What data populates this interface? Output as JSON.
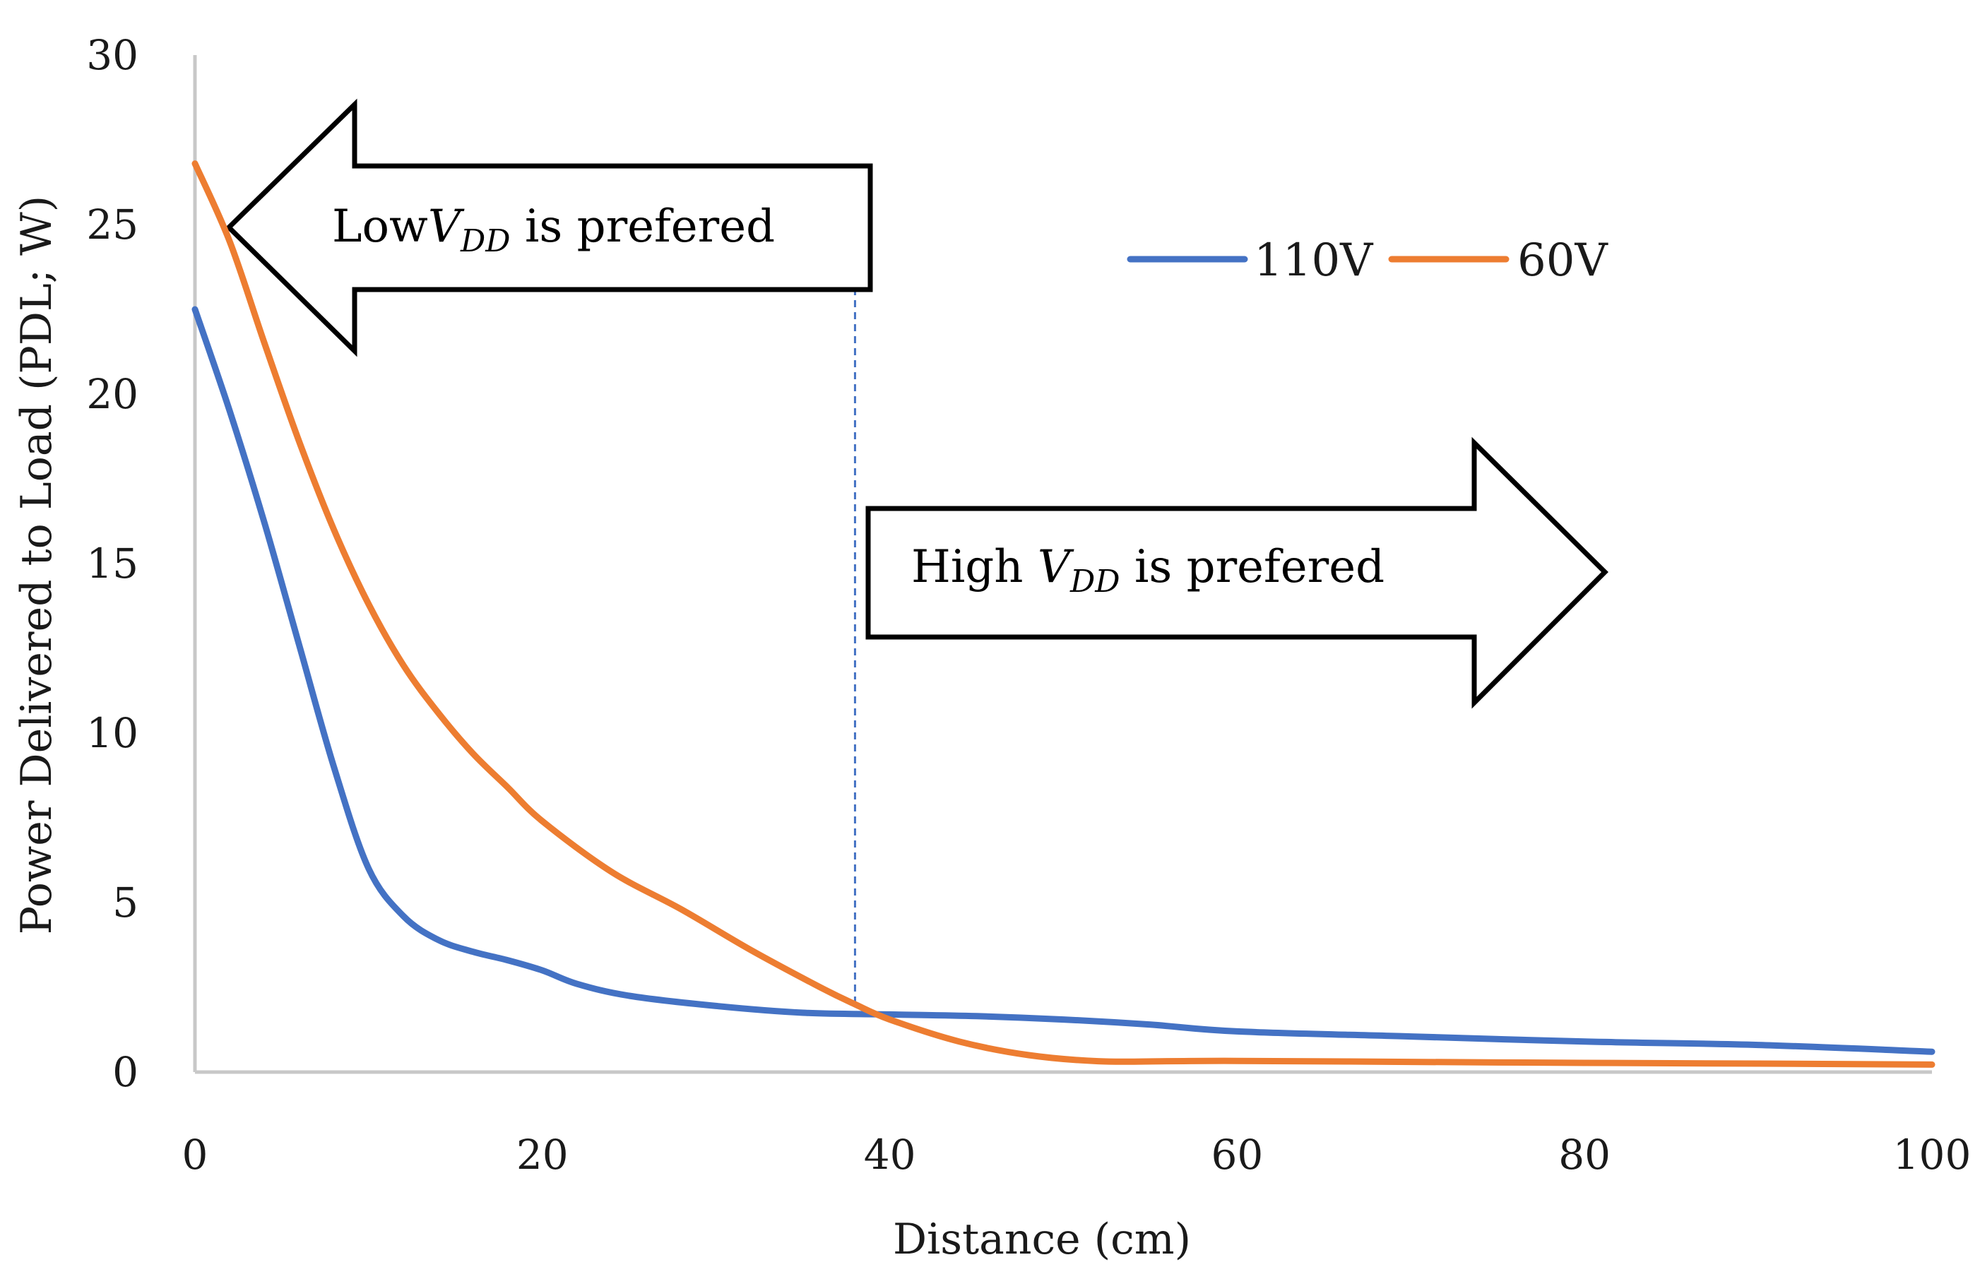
{
  "chart_data": {
    "type": "line",
    "title": "",
    "xlabel": "Distance (cm)",
    "ylabel": "Power Delivered to Load (PDL; W)",
    "xlim": [
      0,
      100
    ],
    "ylim": [
      0,
      30
    ],
    "xticks": [
      0,
      20,
      40,
      60,
      80,
      100
    ],
    "yticks": [
      0,
      5,
      10,
      15,
      20,
      25,
      30
    ],
    "grid": false,
    "legend_position": "top-right",
    "series": [
      {
        "name": "110V",
        "color": "#4472C4",
        "x": [
          0,
          2,
          4,
          6,
          8,
          10,
          12,
          14,
          16,
          18,
          20,
          22,
          25,
          30,
          35,
          40,
          45,
          50,
          55,
          60,
          70,
          80,
          90,
          100
        ],
        "y": [
          22.5,
          19.5,
          16.2,
          12.6,
          9.0,
          6.0,
          4.6,
          3.9,
          3.55,
          3.3,
          3.0,
          2.6,
          2.25,
          1.95,
          1.75,
          1.7,
          1.65,
          1.55,
          1.4,
          1.2,
          1.05,
          0.9,
          0.8,
          0.6
        ]
      },
      {
        "name": "60V",
        "color": "#ED7D31",
        "x": [
          0,
          2,
          4,
          6,
          8,
          10,
          12,
          14,
          16,
          18,
          20,
          24,
          28,
          32,
          36,
          38,
          40,
          44,
          48,
          52,
          56,
          60,
          70,
          80,
          90,
          100
        ],
        "y": [
          26.8,
          24.5,
          21.5,
          18.6,
          16.0,
          13.8,
          12.0,
          10.6,
          9.4,
          8.4,
          7.4,
          5.9,
          4.8,
          3.6,
          2.5,
          2.0,
          1.55,
          0.9,
          0.5,
          0.32,
          0.32,
          0.33,
          0.3,
          0.27,
          0.25,
          0.22
        ]
      }
    ],
    "crossover_x": 38,
    "annotations": [
      {
        "id": "low",
        "prefix": "Low",
        "var": "V",
        "sub": "DD",
        "suffix": " is prefered",
        "direction": "left"
      },
      {
        "id": "high",
        "prefix": "High ",
        "var": "V",
        "sub": "DD",
        "suffix": " is prefered",
        "direction": "right"
      }
    ]
  }
}
